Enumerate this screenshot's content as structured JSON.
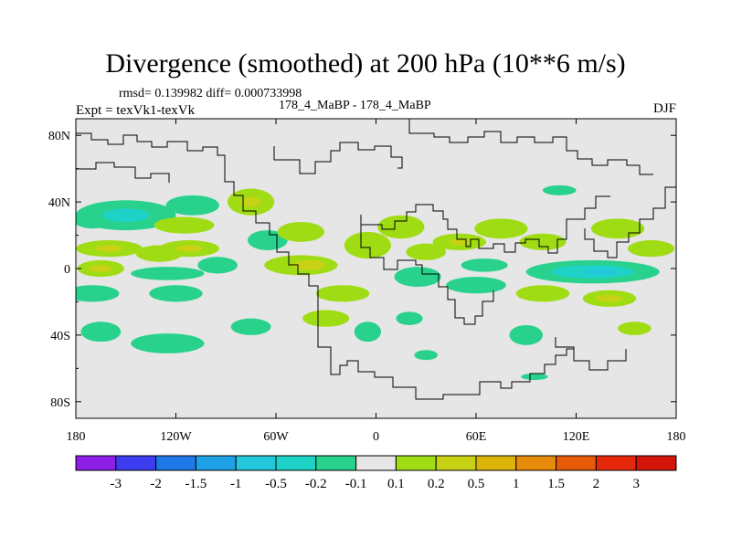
{
  "chart_data": {
    "type": "heatmap",
    "title": "Divergence (smoothed) at 200 hPa (10**6 m/s)",
    "stats_line": "rmsd= 0.139982 diff= 0.000733998",
    "left_label": "Expt = texVk1-texVk",
    "center_label": "178_4_MaBP - 178_4_MaBP",
    "right_label": "DJF",
    "x_ticks": [
      "180",
      "120W",
      "60W",
      "0",
      "60E",
      "120E",
      "180"
    ],
    "y_ticks": [
      "80N",
      "40N",
      "0",
      "40S",
      "80S"
    ],
    "xlim": [
      -180,
      180
    ],
    "ylim": [
      -90,
      90
    ],
    "colorbar_labels": [
      "-3",
      "-2",
      "-1.5",
      "-1",
      "-0.5",
      "-0.2",
      "-0.1",
      "0.1",
      "0.2",
      "0.5",
      "1",
      "1.5",
      "2",
      "3"
    ],
    "colorbar_colors": [
      "#8c1ee6",
      "#3c3cf0",
      "#1e78e6",
      "#1ea0e6",
      "#23c8dc",
      "#1ed2c8",
      "#28d28c",
      "#e6e6e6",
      "#a0dc14",
      "#c8d214",
      "#dcb40a",
      "#e68c0a",
      "#e65a0a",
      "#e6280a",
      "#d2140a"
    ],
    "background_color": "#e6e6e6",
    "blobs": [
      {
        "lon": -170,
        "lat": 30,
        "rx": 12,
        "ry": 6,
        "level": "-0.1"
      },
      {
        "lon": -150,
        "lat": 32,
        "rx": 30,
        "ry": 9,
        "level": "-0.1"
      },
      {
        "lon": -150,
        "lat": 32,
        "rx": 14,
        "ry": 4,
        "level": "-0.2"
      },
      {
        "lon": -110,
        "lat": 38,
        "rx": 16,
        "ry": 6,
        "level": "-0.1"
      },
      {
        "lon": -115,
        "lat": 26,
        "rx": 18,
        "ry": 5,
        "level": "0.1"
      },
      {
        "lon": -75,
        "lat": 40,
        "rx": 14,
        "ry": 8,
        "level": "0.1"
      },
      {
        "lon": -75,
        "lat": 40,
        "rx": 6,
        "ry": 3,
        "level": "0.2"
      },
      {
        "lon": -160,
        "lat": 12,
        "rx": 20,
        "ry": 5,
        "level": "0.1"
      },
      {
        "lon": -160,
        "lat": 12,
        "rx": 8,
        "ry": 2,
        "level": "0.2"
      },
      {
        "lon": -130,
        "lat": 9,
        "rx": 14,
        "ry": 5,
        "level": "0.1"
      },
      {
        "lon": -112,
        "lat": 12,
        "rx": 18,
        "ry": 5,
        "level": "0.1"
      },
      {
        "lon": -112,
        "lat": 12,
        "rx": 8,
        "ry": 2,
        "level": "0.2"
      },
      {
        "lon": -65,
        "lat": 17,
        "rx": 12,
        "ry": 6,
        "level": "-0.1"
      },
      {
        "lon": -45,
        "lat": 22,
        "rx": 14,
        "ry": 6,
        "level": "0.1"
      },
      {
        "lon": -165,
        "lat": 0,
        "rx": 14,
        "ry": 5,
        "level": "0.1"
      },
      {
        "lon": -165,
        "lat": 0,
        "rx": 7,
        "ry": 2,
        "level": "0.2"
      },
      {
        "lon": -125,
        "lat": -3,
        "rx": 22,
        "ry": 4,
        "level": "-0.1"
      },
      {
        "lon": -95,
        "lat": 2,
        "rx": 12,
        "ry": 5,
        "level": "-0.1"
      },
      {
        "lon": -45,
        "lat": 2,
        "rx": 22,
        "ry": 6,
        "level": "0.1"
      },
      {
        "lon": -40,
        "lat": 2,
        "rx": 10,
        "ry": 3,
        "level": "0.2"
      },
      {
        "lon": -5,
        "lat": 14,
        "rx": 14,
        "ry": 8,
        "level": "0.1"
      },
      {
        "lon": 15,
        "lat": 25,
        "rx": 14,
        "ry": 7,
        "level": "0.1"
      },
      {
        "lon": 30,
        "lat": 10,
        "rx": 12,
        "ry": 5,
        "level": "0.1"
      },
      {
        "lon": 50,
        "lat": 16,
        "rx": 16,
        "ry": 5,
        "level": "0.1"
      },
      {
        "lon": 50,
        "lat": 16,
        "rx": 6,
        "ry": 2,
        "level": "0.2"
      },
      {
        "lon": 75,
        "lat": 24,
        "rx": 16,
        "ry": 6,
        "level": "0.1"
      },
      {
        "lon": 100,
        "lat": 16,
        "rx": 14,
        "ry": 5,
        "level": "0.1"
      },
      {
        "lon": 145,
        "lat": 24,
        "rx": 16,
        "ry": 6,
        "level": "0.1"
      },
      {
        "lon": 165,
        "lat": 12,
        "rx": 14,
        "ry": 5,
        "level": "0.1"
      },
      {
        "lon": 65,
        "lat": 2,
        "rx": 14,
        "ry": 4,
        "level": "-0.1"
      },
      {
        "lon": 130,
        "lat": -2,
        "rx": 40,
        "ry": 7,
        "level": "-0.1"
      },
      {
        "lon": 130,
        "lat": -2,
        "rx": 25,
        "ry": 4,
        "level": "-0.2"
      },
      {
        "lon": 135,
        "lat": -2,
        "rx": 10,
        "ry": 2,
        "level": "-0.5"
      },
      {
        "lon": 25,
        "lat": -5,
        "rx": 14,
        "ry": 6,
        "level": "-0.1"
      },
      {
        "lon": -170,
        "lat": -15,
        "rx": 16,
        "ry": 5,
        "level": "-0.1"
      },
      {
        "lon": -120,
        "lat": -15,
        "rx": 16,
        "ry": 5,
        "level": "-0.1"
      },
      {
        "lon": -20,
        "lat": -15,
        "rx": 16,
        "ry": 5,
        "level": "0.1"
      },
      {
        "lon": 60,
        "lat": -10,
        "rx": 18,
        "ry": 5,
        "level": "-0.1"
      },
      {
        "lon": 100,
        "lat": -15,
        "rx": 16,
        "ry": 5,
        "level": "0.1"
      },
      {
        "lon": 140,
        "lat": -18,
        "rx": 16,
        "ry": 5,
        "level": "0.1"
      },
      {
        "lon": 140,
        "lat": -18,
        "rx": 8,
        "ry": 2,
        "level": "0.2"
      },
      {
        "lon": -165,
        "lat": -38,
        "rx": 12,
        "ry": 6,
        "level": "-0.1"
      },
      {
        "lon": -125,
        "lat": -45,
        "rx": 22,
        "ry": 6,
        "level": "-0.1"
      },
      {
        "lon": -75,
        "lat": -35,
        "rx": 12,
        "ry": 5,
        "level": "-0.1"
      },
      {
        "lon": -30,
        "lat": -30,
        "rx": 14,
        "ry": 5,
        "level": "0.1"
      },
      {
        "lon": -5,
        "lat": -38,
        "rx": 8,
        "ry": 6,
        "level": "-0.1"
      },
      {
        "lon": 20,
        "lat": -30,
        "rx": 8,
        "ry": 4,
        "level": "-0.1"
      },
      {
        "lon": 90,
        "lat": -40,
        "rx": 10,
        "ry": 6,
        "level": "-0.1"
      },
      {
        "lon": 155,
        "lat": -36,
        "rx": 10,
        "ry": 4,
        "level": "0.1"
      },
      {
        "lon": 30,
        "lat": -52,
        "rx": 7,
        "ry": 3,
        "level": "-0.1"
      },
      {
        "lon": 95,
        "lat": -65,
        "rx": 8,
        "ry": 2,
        "level": "-0.1"
      },
      {
        "lon": 110,
        "lat": 47,
        "rx": 10,
        "ry": 3,
        "level": "-0.1"
      }
    ]
  }
}
